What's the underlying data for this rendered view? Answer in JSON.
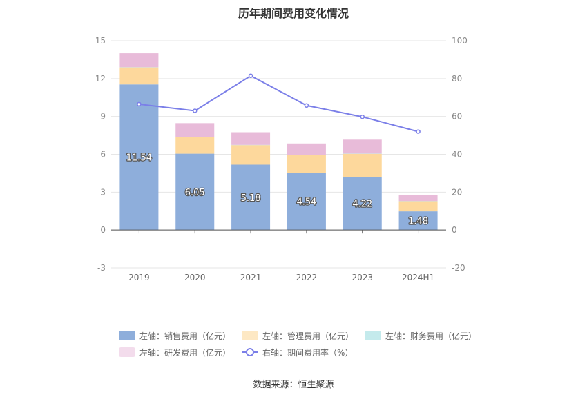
{
  "title": "历年期间费用变化情况",
  "source": "数据来源：恒生聚源",
  "chart_data": {
    "type": "bar",
    "stacked": true,
    "categories": [
      "2019",
      "2020",
      "2021",
      "2022",
      "2023",
      "2024H1"
    ],
    "left_axis": {
      "min": -3,
      "max": 15,
      "ticks": [
        "-3",
        "0",
        "3",
        "6",
        "9",
        "12",
        "15"
      ]
    },
    "right_axis": {
      "min": -20,
      "max": 100,
      "ticks": [
        "-20",
        "0",
        "20",
        "40",
        "60",
        "80",
        "100"
      ]
    },
    "series": [
      {
        "name": "左轴：销售费用（亿元）",
        "axis": "left",
        "type": "bar",
        "color": "#8eaedb",
        "values": [
          11.54,
          6.05,
          5.18,
          4.54,
          4.22,
          1.48
        ],
        "labels": [
          "11.54",
          "6.05",
          "5.18",
          "4.54",
          "4.22",
          "1.48"
        ]
      },
      {
        "name": "左轴：管理费用（亿元）",
        "axis": "left",
        "type": "bar",
        "color": "#fdd89c",
        "values": [
          1.35,
          1.3,
          1.55,
          1.4,
          1.82,
          0.8
        ]
      },
      {
        "name": "左轴：财务费用（亿元）",
        "axis": "left",
        "type": "bar",
        "color": "#a9e1e6",
        "values": [
          0.02,
          0.02,
          0.02,
          0.02,
          0.02,
          0.02
        ]
      },
      {
        "name": "左轴：研发费用（亿元）",
        "axis": "left",
        "type": "bar",
        "color": "#e8bbd9",
        "values": [
          1.1,
          1.1,
          1.0,
          0.9,
          1.1,
          0.5
        ]
      },
      {
        "name": "右轴：期间费用率（%）",
        "axis": "right",
        "type": "line",
        "color": "#7b7fe8",
        "values": [
          66.5,
          63.0,
          81.5,
          65.8,
          59.8,
          52.0
        ]
      }
    ],
    "legend_position": "bottom"
  }
}
